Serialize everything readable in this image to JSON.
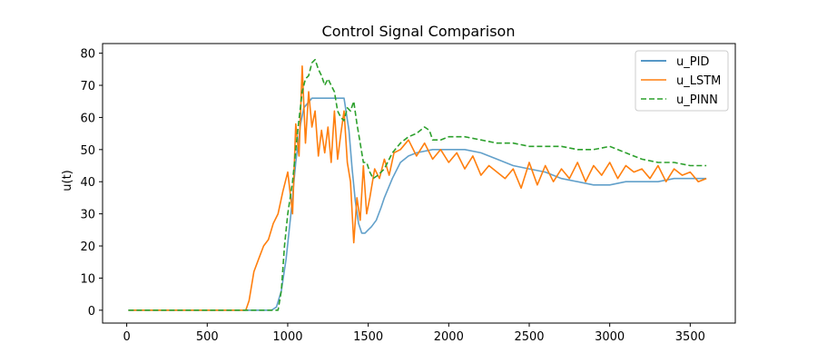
{
  "chart_data": {
    "type": "line",
    "title": "Control Signal Comparison",
    "xlabel": "",
    "ylabel": "u(t)",
    "xlim": [
      -150,
      3780
    ],
    "ylim": [
      -4,
      83
    ],
    "xticks": [
      0,
      500,
      1000,
      1500,
      2000,
      2500,
      3000,
      3500
    ],
    "yticks": [
      0,
      10,
      20,
      30,
      40,
      50,
      60,
      70,
      80
    ],
    "grid": false,
    "legend_position": "top-right",
    "series": [
      {
        "name": "u_PID",
        "color": "#1f77b4",
        "style": "solid",
        "x": [
          10,
          900,
          930,
          960,
          990,
          1020,
          1050,
          1080,
          1100,
          1150,
          1200,
          1250,
          1300,
          1350,
          1380,
          1400,
          1420,
          1440,
          1460,
          1480,
          1500,
          1520,
          1550,
          1580,
          1600,
          1650,
          1700,
          1750,
          1800,
          1900,
          2000,
          2100,
          2200,
          2300,
          2400,
          2500,
          2600,
          2700,
          2800,
          2900,
          3000,
          3100,
          3200,
          3300,
          3400,
          3500,
          3600
        ],
        "y": [
          0,
          0,
          1,
          6,
          16,
          30,
          46,
          58,
          63,
          66,
          66,
          66,
          66,
          66,
          56,
          44,
          34,
          27,
          24,
          24,
          25,
          26,
          28,
          32,
          35,
          41,
          46,
          48,
          49,
          50,
          50,
          50,
          49,
          47,
          45,
          44,
          43,
          41,
          40,
          39,
          39,
          40,
          40,
          40,
          41,
          41,
          41
        ]
      },
      {
        "name": "u_LSTM",
        "color": "#ff7f0e",
        "style": "solid",
        "x": [
          10,
          740,
          760,
          790,
          820,
          850,
          880,
          910,
          940,
          970,
          1000,
          1030,
          1050,
          1070,
          1090,
          1110,
          1130,
          1150,
          1170,
          1190,
          1210,
          1230,
          1250,
          1270,
          1290,
          1310,
          1330,
          1350,
          1370,
          1390,
          1410,
          1430,
          1450,
          1470,
          1490,
          1510,
          1540,
          1570,
          1600,
          1630,
          1660,
          1700,
          1750,
          1800,
          1850,
          1900,
          1950,
          2000,
          2050,
          2100,
          2150,
          2200,
          2250,
          2300,
          2350,
          2400,
          2450,
          2500,
          2550,
          2600,
          2650,
          2700,
          2750,
          2800,
          2850,
          2900,
          2950,
          3000,
          3050,
          3100,
          3150,
          3200,
          3250,
          3300,
          3350,
          3400,
          3450,
          3500,
          3550,
          3600
        ],
        "y": [
          0,
          0,
          3,
          12,
          16,
          20,
          22,
          27,
          30,
          37,
          43,
          30,
          58,
          48,
          76,
          52,
          68,
          57,
          62,
          48,
          56,
          49,
          57,
          46,
          62,
          47,
          55,
          62,
          46,
          40,
          21,
          35,
          28,
          45,
          30,
          35,
          44,
          41,
          47,
          42,
          49,
          50,
          53,
          48,
          52,
          47,
          50,
          46,
          49,
          44,
          48,
          42,
          45,
          43,
          41,
          44,
          38,
          46,
          39,
          45,
          40,
          44,
          41,
          46,
          40,
          45,
          42,
          46,
          41,
          45,
          43,
          44,
          41,
          45,
          40,
          44,
          42,
          43,
          40,
          41
        ]
      },
      {
        "name": "u_PINN",
        "color": "#2ca02c",
        "style": "dashed",
        "x": [
          10,
          940,
          960,
          980,
          1000,
          1030,
          1060,
          1090,
          1110,
          1130,
          1150,
          1170,
          1190,
          1210,
          1230,
          1250,
          1270,
          1290,
          1310,
          1330,
          1350,
          1370,
          1390,
          1410,
          1430,
          1450,
          1470,
          1490,
          1510,
          1530,
          1560,
          1600,
          1650,
          1700,
          1750,
          1800,
          1850,
          1880,
          1900,
          1950,
          2000,
          2100,
          2200,
          2300,
          2400,
          2500,
          2600,
          2700,
          2800,
          2900,
          3000,
          3100,
          3200,
          3300,
          3400,
          3500,
          3600
        ],
        "y": [
          0,
          0,
          6,
          20,
          30,
          40,
          55,
          68,
          72,
          73,
          77,
          78,
          75,
          73,
          70,
          72,
          70,
          68,
          62,
          60,
          59,
          63,
          62,
          65,
          58,
          52,
          46,
          46,
          43,
          41,
          42,
          44,
          49,
          52,
          54,
          55,
          57,
          56,
          53,
          53,
          54,
          54,
          53,
          52,
          52,
          51,
          51,
          51,
          50,
          50,
          51,
          49,
          47,
          46,
          46,
          45,
          45
        ]
      }
    ]
  }
}
